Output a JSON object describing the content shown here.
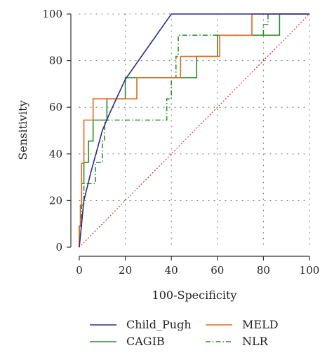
{
  "chart_data": {
    "type": "line",
    "title": "",
    "xlabel": "100-Specificity",
    "ylabel": "Sensitivity",
    "xlim": [
      0,
      100
    ],
    "ylim": [
      0,
      100
    ],
    "x_ticks": [
      0,
      20,
      40,
      60,
      80,
      100
    ],
    "y_ticks": [
      0,
      20,
      40,
      60,
      80,
      100
    ],
    "grid": "dotted",
    "legend_position": "bottom",
    "series": [
      {
        "name": "Child_Pugh",
        "color": "#2b2b8c",
        "style": "solid",
        "x": [
          0,
          2,
          5,
          10,
          13,
          20,
          30,
          40,
          100
        ],
        "y": [
          0,
          20,
          32,
          50,
          57,
          72,
          86,
          100,
          100
        ]
      },
      {
        "name": "MELD",
        "color": "#e1691f",
        "style": "solid",
        "x": [
          0,
          0,
          0.5,
          0.5,
          1,
          1,
          2,
          2,
          6,
          6,
          25,
          25,
          44,
          44,
          61,
          61,
          75,
          75,
          100
        ],
        "y": [
          0,
          9,
          9,
          18,
          18,
          36,
          36,
          54.5,
          54.5,
          63.6,
          63.6,
          72.7,
          72.7,
          81.8,
          81.8,
          90.9,
          90.9,
          100,
          100
        ]
      },
      {
        "name": "CAGIB",
        "color": "#2e8b2e",
        "style": "solid",
        "x": [
          0,
          0,
          0.5,
          0.5,
          1,
          1,
          2,
          2,
          4,
          4,
          6,
          6,
          12,
          12,
          16,
          16,
          20,
          20,
          26,
          26,
          51,
          51,
          60,
          60,
          87,
          87,
          100
        ],
        "y": [
          0,
          9,
          9,
          18,
          18,
          27.3,
          27.3,
          36.4,
          36.4,
          45.5,
          45.5,
          54.5,
          54.5,
          63.6,
          63.6,
          63.6,
          63.6,
          72.7,
          72.7,
          72.7,
          72.7,
          81.8,
          81.8,
          90.9,
          90.9,
          100,
          100
        ]
      },
      {
        "name": "NLR",
        "color": "#2e8b2e",
        "style": "dash-dot",
        "x": [
          0,
          0,
          1,
          1,
          2,
          2,
          7,
          7,
          10,
          10,
          11,
          11,
          38,
          38,
          40,
          40,
          42,
          42,
          43,
          43,
          80,
          80,
          82,
          82,
          100
        ],
        "y": [
          0,
          9,
          9,
          18,
          18,
          27.3,
          27.3,
          36.4,
          36.4,
          45.5,
          45.5,
          54.5,
          54.5,
          63.6,
          63.6,
          72.7,
          72.7,
          81.8,
          81.8,
          90.9,
          90.9,
          95.5,
          95.5,
          100,
          100
        ]
      }
    ],
    "reference_line": {
      "x": [
        0,
        100
      ],
      "y": [
        0,
        100
      ],
      "color": "#b22222",
      "style": "dotted"
    }
  }
}
